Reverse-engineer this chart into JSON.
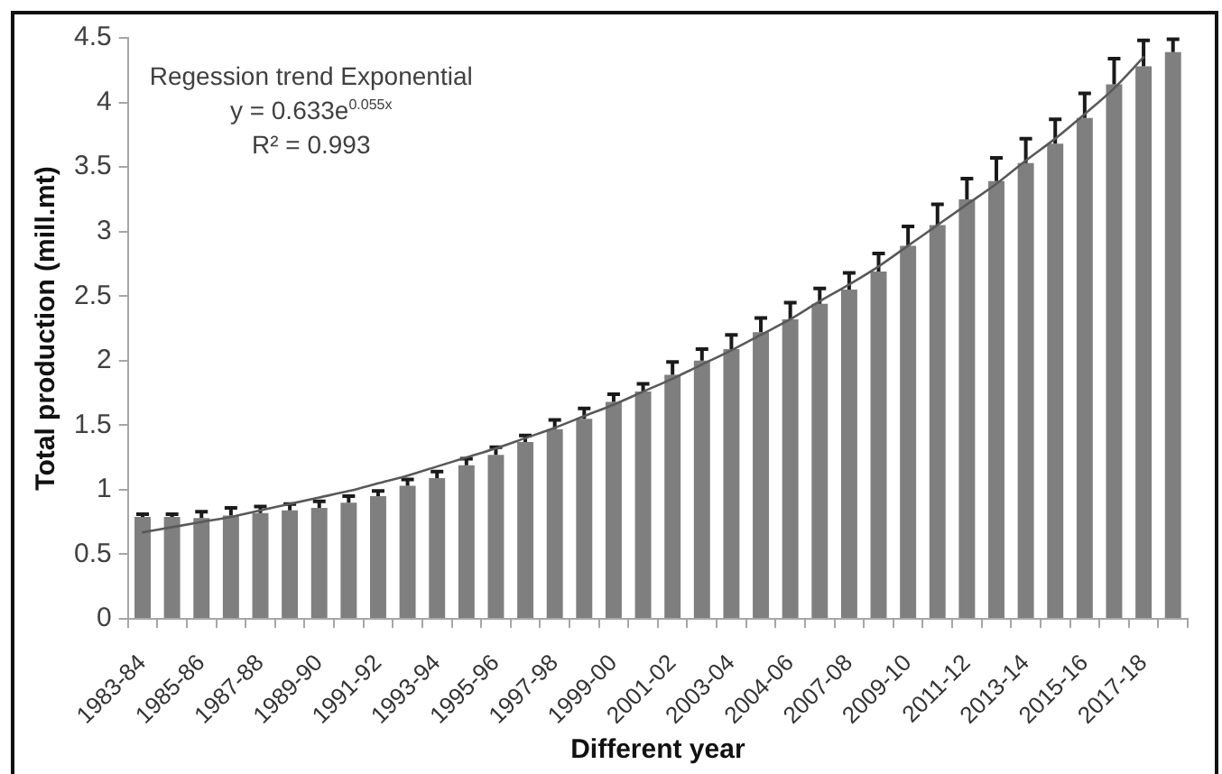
{
  "chart_data": {
    "type": "bar",
    "categories": [
      "1983-84",
      null,
      "1985-86",
      null,
      "1987-88",
      null,
      "1989-90",
      null,
      "1991-92",
      null,
      "1993-94",
      null,
      "1995-96",
      null,
      "1997-98",
      null,
      "1999-00",
      null,
      "2001-02",
      null,
      "2003-04",
      null,
      "2004-06",
      null,
      "2007-08",
      null,
      "2009-10",
      null,
      "2011-12",
      null,
      "2013-14",
      null,
      "2015-16",
      null,
      "2017-18",
      null
    ],
    "series": [
      {
        "color": "#7f7f7f",
        "values": [
          0.79,
          0.79,
          0.78,
          0.8,
          0.82,
          0.84,
          0.86,
          0.9,
          0.95,
          1.03,
          1.09,
          1.19,
          1.27,
          1.37,
          1.47,
          1.55,
          1.68,
          1.76,
          1.89,
          2.0,
          2.09,
          2.22,
          2.32,
          2.44,
          2.55,
          2.69,
          2.89,
          3.05,
          3.25,
          3.39,
          3.53,
          3.68,
          3.88,
          4.14,
          4.28,
          4.39
        ],
        "errors": [
          [
            0.79,
            0.81
          ],
          [
            0.79,
            0.81
          ],
          [
            0.78,
            0.83
          ],
          [
            0.8,
            0.86
          ],
          [
            0.82,
            0.87
          ],
          [
            0.84,
            0.89
          ],
          [
            0.86,
            0.91
          ],
          [
            0.9,
            0.95
          ],
          [
            0.95,
            0.99
          ],
          [
            1.03,
            1.08
          ],
          [
            1.09,
            1.14
          ],
          [
            1.19,
            1.24
          ],
          [
            1.27,
            1.33
          ],
          [
            1.37,
            1.42
          ],
          [
            1.47,
            1.54
          ],
          [
            1.55,
            1.63
          ],
          [
            1.68,
            1.74
          ],
          [
            1.76,
            1.82
          ],
          [
            1.89,
            1.99
          ],
          [
            2.0,
            2.09
          ],
          [
            2.09,
            2.2
          ],
          [
            2.22,
            2.33
          ],
          [
            2.32,
            2.45
          ],
          [
            2.44,
            2.56
          ],
          [
            2.55,
            2.68
          ],
          [
            2.69,
            2.83
          ],
          [
            2.89,
            3.04
          ],
          [
            3.05,
            3.21
          ],
          [
            3.25,
            3.41
          ],
          [
            3.39,
            3.57
          ],
          [
            3.53,
            3.72
          ],
          [
            3.68,
            3.87
          ],
          [
            3.88,
            4.07
          ],
          [
            4.14,
            4.34
          ],
          [
            4.28,
            4.48
          ],
          [
            4.39,
            4.49
          ]
        ]
      },
      {
        "type": "line",
        "color": "#595959",
        "marker": "none",
        "values": [
          0.67,
          0.71,
          0.75,
          0.79,
          0.84,
          0.89,
          0.94,
          0.99,
          1.05,
          1.11,
          1.18,
          1.25,
          1.32,
          1.4,
          1.48,
          1.57,
          1.66,
          1.76,
          1.86,
          1.97,
          2.08,
          2.2,
          2.32,
          2.46,
          2.59,
          2.73,
          2.89,
          3.05,
          3.21,
          3.37,
          3.55,
          3.72,
          3.91,
          4.11,
          4.35,
          null
        ]
      }
    ],
    "ylim": [
      0,
      4.5
    ],
    "yticks": [
      0,
      0.5,
      1,
      1.5,
      2,
      2.5,
      3,
      3.5,
      4,
      4.5
    ],
    "xlabel": "Different year",
    "ylabel": "Total production (mill.mt)",
    "annotations": [
      "Regession trend Exponential",
      "y = 0.633e$^{0.055x}$",
      "R² = 0.993"
    ]
  }
}
